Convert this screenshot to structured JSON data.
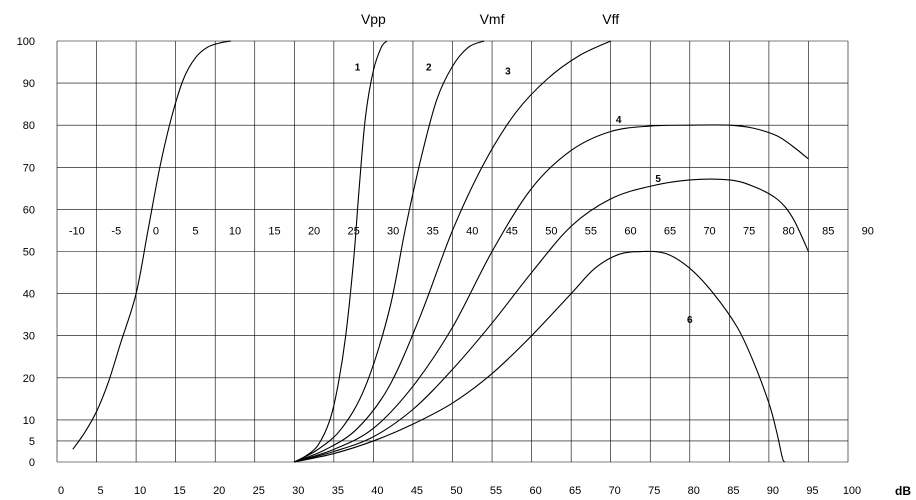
{
  "chart_data": {
    "type": "line",
    "title": "",
    "xlabel": "dB",
    "ylabel": "",
    "x_axis": {
      "range": [
        0,
        100
      ],
      "ticks": [
        "0",
        "5",
        "10",
        "15",
        "20",
        "25",
        "30",
        "35",
        "40",
        "45",
        "50",
        "55",
        "60",
        "65",
        "70",
        "75",
        "80",
        "85",
        "90",
        "95",
        "100"
      ]
    },
    "y_axis": {
      "range": [
        0,
        100
      ],
      "ticks": [
        "0",
        "5",
        "10",
        "20",
        "30",
        "40",
        "50",
        "60",
        "70",
        "80",
        "90",
        "100"
      ]
    },
    "secondary_x_axis": {
      "position": "middle",
      "offset_from_primary": -12.5,
      "ticks": [
        "-10",
        "-5",
        "0",
        "5",
        "10",
        "15",
        "20",
        "25",
        "30",
        "35",
        "40",
        "45",
        "50",
        "55",
        "60",
        "65",
        "70",
        "75",
        "80",
        "85",
        "90"
      ]
    },
    "grid": true,
    "top_labels": [
      {
        "text": "Vpp",
        "x": 40
      },
      {
        "text": "Vmf",
        "x": 55
      },
      {
        "text": "Vff",
        "x": 70
      }
    ],
    "series": [
      {
        "label": "",
        "points": [
          [
            2,
            3
          ],
          [
            3.5,
            7
          ],
          [
            5,
            12
          ],
          [
            6.5,
            19
          ],
          [
            8,
            28
          ],
          [
            10,
            40
          ],
          [
            11.5,
            55
          ],
          [
            13,
            70
          ],
          [
            14.5,
            82
          ],
          [
            16,
            91
          ],
          [
            17.5,
            96
          ],
          [
            19,
            98.5
          ],
          [
            20.5,
            99.5
          ],
          [
            22,
            100
          ]
        ]
      },
      {
        "label": "1",
        "label_x": 38,
        "label_y": 94,
        "points": [
          [
            30,
            0
          ],
          [
            31.5,
            1.5
          ],
          [
            33,
            4
          ],
          [
            34.5,
            10
          ],
          [
            35.5,
            18
          ],
          [
            36.5,
            30
          ],
          [
            37.5,
            48
          ],
          [
            38.2,
            65
          ],
          [
            39,
            82
          ],
          [
            40,
            93
          ],
          [
            41,
            98.5
          ],
          [
            41.7,
            100
          ]
        ]
      },
      {
        "label": "2",
        "label_x": 47,
        "label_y": 94,
        "points": [
          [
            30,
            0
          ],
          [
            33,
            3
          ],
          [
            36,
            8
          ],
          [
            39,
            18
          ],
          [
            42,
            36
          ],
          [
            44,
            55
          ],
          [
            46,
            72
          ],
          [
            48,
            86
          ],
          [
            50,
            94
          ],
          [
            52,
            98.5
          ],
          [
            54,
            100
          ]
        ]
      },
      {
        "label": "3",
        "label_x": 57,
        "label_y": 93,
        "points": [
          [
            30,
            0
          ],
          [
            34,
            3
          ],
          [
            38,
            8
          ],
          [
            42,
            18
          ],
          [
            46,
            35
          ],
          [
            50,
            55
          ],
          [
            54,
            71
          ],
          [
            58,
            83
          ],
          [
            62,
            91
          ],
          [
            66,
            96.5
          ],
          [
            70,
            100
          ]
        ]
      },
      {
        "label": "4",
        "label_x": 71,
        "label_y": 81.5,
        "points": [
          [
            30,
            0
          ],
          [
            35,
            3
          ],
          [
            40,
            8
          ],
          [
            45,
            18
          ],
          [
            50,
            32
          ],
          [
            55,
            50
          ],
          [
            60,
            65
          ],
          [
            65,
            74
          ],
          [
            70,
            78.5
          ],
          [
            75,
            79.8
          ],
          [
            80,
            80
          ],
          [
            85,
            80
          ],
          [
            88,
            79.3
          ],
          [
            91,
            77.5
          ],
          [
            93,
            75
          ],
          [
            95,
            72
          ]
        ]
      },
      {
        "label": "5",
        "label_x": 76,
        "label_y": 67.5,
        "points": [
          [
            30,
            0
          ],
          [
            35,
            2.5
          ],
          [
            40,
            6
          ],
          [
            45,
            12.5
          ],
          [
            50,
            22
          ],
          [
            55,
            33
          ],
          [
            60,
            45
          ],
          [
            65,
            56
          ],
          [
            70,
            62.5
          ],
          [
            75,
            65.5
          ],
          [
            80,
            67
          ],
          [
            85,
            67
          ],
          [
            88,
            65.5
          ],
          [
            91,
            62.5
          ],
          [
            93,
            58
          ],
          [
            95,
            50
          ]
        ]
      },
      {
        "label": "6",
        "label_x": 80,
        "label_y": 34,
        "points": [
          [
            30,
            0
          ],
          [
            35,
            2
          ],
          [
            40,
            5
          ],
          [
            45,
            9
          ],
          [
            50,
            14
          ],
          [
            55,
            21
          ],
          [
            60,
            30
          ],
          [
            65,
            40
          ],
          [
            68,
            46
          ],
          [
            71,
            49.3
          ],
          [
            74,
            50
          ],
          [
            77,
            49.5
          ],
          [
            80,
            46
          ],
          [
            83,
            40
          ],
          [
            86,
            32
          ],
          [
            88,
            24
          ],
          [
            90,
            14
          ],
          [
            91,
            7
          ],
          [
            91.7,
            1
          ],
          [
            92,
            0
          ]
        ]
      }
    ]
  }
}
